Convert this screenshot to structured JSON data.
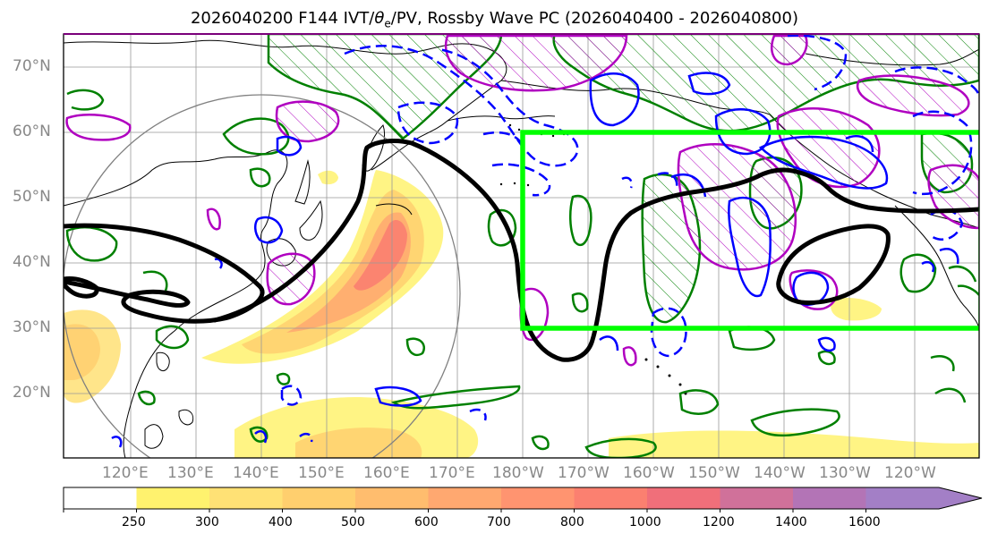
{
  "title_main": "2026040200 F144 IVT/",
  "title_theta": "θ",
  "title_sub": "e",
  "title_tail": "/PV, Rossby Wave PC (2026040400 - 2026040800)",
  "lat_labels": [
    "70°N",
    "60°N",
    "50°N",
    "40°N",
    "30°N",
    "20°N"
  ],
  "lon_labels": [
    "120°E",
    "130°E",
    "140°E",
    "150°E",
    "160°E",
    "170°E",
    "180°W",
    "170°W",
    "160°W",
    "150°W",
    "140°W",
    "130°W",
    "120°W"
  ],
  "colorbar": {
    "ticks": [
      "250",
      "300",
      "400",
      "500",
      "600",
      "700",
      "800",
      "1000",
      "1200",
      "1400",
      "1600"
    ],
    "colors": [
      "#ffffff",
      "#fff26e",
      "#ffe175",
      "#ffcf6e",
      "#ffbd6e",
      "#ffa870",
      "#ff9470",
      "#fb8070",
      "#f06f7a",
      "#d0719a",
      "#b374b6",
      "#a37fc6"
    ]
  },
  "overlays": {
    "box_color": "#00ff00",
    "pv_color": "#000000",
    "positive_color": "#b000c0",
    "negative_color": "#0000ff",
    "theta_color": "#008000"
  }
}
